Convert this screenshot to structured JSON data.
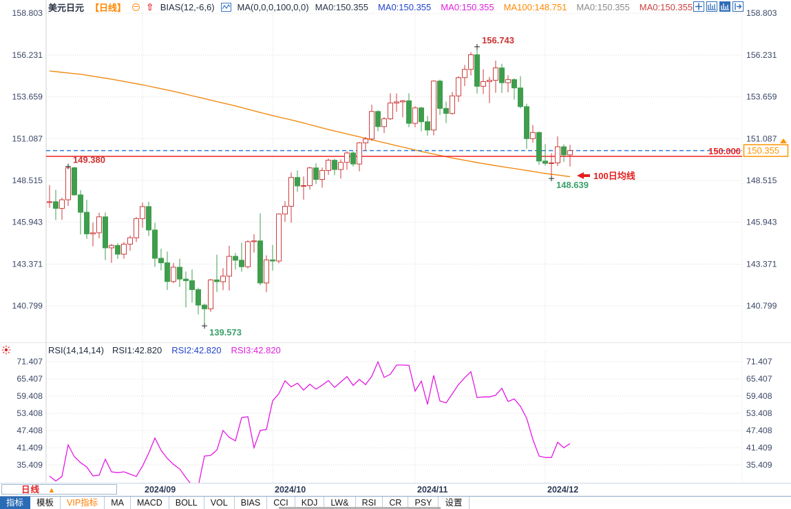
{
  "header": {
    "symbol": "美元日元",
    "period_tag": "【日线】",
    "bias_label": "BIAS(12,-6,6)",
    "ma_group_label": "MA(0,0,0,100,0,0)",
    "ma_values": [
      {
        "label": "MA0:150.355",
        "color": "#2b3347"
      },
      {
        "label": "MA0:150.355",
        "color": "#2244cc"
      },
      {
        "label": "MA0:150.355",
        "color": "#e020e0"
      },
      {
        "label": "MA100:148.751",
        "color": "#ff8800"
      },
      {
        "label": "MA0:150.355",
        "color": "#8a8a8a"
      },
      {
        "label": "MA0:150.355",
        "color": "#cc4040"
      }
    ]
  },
  "toolbar_icons": [
    {
      "name": "crosshair-icon"
    },
    {
      "name": "main-pane-icon"
    },
    {
      "name": "sub-pane-icon-active"
    },
    {
      "name": "shift-pane-icon"
    }
  ],
  "price_axis": {
    "ticks": [
      "158.803",
      "156.231",
      "153.659",
      "151.087",
      "148.515",
      "145.943",
      "143.371",
      "140.799"
    ]
  },
  "rsi_pane": {
    "label": "RSI(14,14,14)",
    "values": [
      {
        "label": "RSI1:42.820",
        "color": "#1f2a3c"
      },
      {
        "label": "RSI2:42.820",
        "color": "#2244cc"
      },
      {
        "label": "RSI3:42.820",
        "color": "#e020e0"
      }
    ],
    "ticks": [
      "71.407",
      "65.407",
      "59.408",
      "53.408",
      "47.408",
      "41.409",
      "35.409"
    ]
  },
  "footer": {
    "period_label": "日线",
    "period_arrow": "▲",
    "tabs": [
      {
        "label": "指标",
        "active": true
      },
      {
        "label": "模板"
      },
      {
        "label": "VIP指标",
        "vip": true
      },
      {
        "label": "MA"
      },
      {
        "label": "MACD"
      },
      {
        "label": "BOLL"
      },
      {
        "label": "VOL"
      },
      {
        "label": "BIAS"
      },
      {
        "label": "CCI"
      },
      {
        "label": "KDJ"
      },
      {
        "label": "LW&"
      },
      {
        "label": "RSI"
      },
      {
        "label": "CR"
      },
      {
        "label": "PSY"
      },
      {
        "label": "设置"
      }
    ]
  },
  "colors": {
    "up_candle": "#cc3b3b",
    "down_candle": "#3f9e4d",
    "ma100_line": "#f08b12",
    "price_level_line": "#ee2222",
    "current_price_line": "#2e7bd9",
    "rsi_line": "#e318e3",
    "badge": "#ff9500",
    "grid": "#d9d9d9",
    "axis_text": "#3a4766"
  },
  "chart_data": {
    "type": "candlestick",
    "title": "美元日元 日线 (USD/JPY daily with MA100 and RSI)",
    "months": [
      {
        "label": "2024/09",
        "candle_index": 15
      },
      {
        "label": "2024/10",
        "candle_index": 36
      },
      {
        "label": "2024/11",
        "candle_index": 59
      },
      {
        "label": "2024/12",
        "candle_index": 80
      }
    ],
    "price_axis_range": [
      139.0,
      158.803
    ],
    "rsi_axis_range": [
      35.409,
      71.407
    ],
    "lines": {
      "price_level": 150.0,
      "price_level_label": "150.000",
      "current_price": 150.355,
      "current_price_label": "150.355"
    },
    "candles": [
      [
        147.16,
        148.23,
        146.84,
        147.21
      ],
      [
        147.21,
        147.94,
        146.08,
        146.8
      ],
      [
        146.8,
        147.45,
        146.1,
        147.33
      ],
      [
        147.33,
        149.38,
        146.95,
        149.3
      ],
      [
        149.3,
        149.35,
        147.58,
        147.63
      ],
      [
        147.63,
        147.92,
        145.19,
        146.56
      ],
      [
        146.56,
        147.33,
        144.92,
        145.23
      ],
      [
        145.23,
        145.92,
        144.46,
        145.3
      ],
      [
        145.3,
        146.53,
        144.96,
        146.28
      ],
      [
        146.28,
        146.55,
        143.62,
        144.37
      ],
      [
        144.37,
        144.62,
        143.45,
        144.52
      ],
      [
        144.52,
        144.65,
        143.69,
        143.98
      ],
      [
        143.98,
        144.73,
        143.71,
        144.6
      ],
      [
        144.6,
        145.13,
        144.2,
        144.99
      ],
      [
        144.99,
        146.26,
        144.73,
        146.17
      ],
      [
        146.17,
        147.16,
        145.61,
        146.91
      ],
      [
        146.91,
        147.21,
        145.1,
        145.47
      ],
      [
        145.47,
        145.91,
        143.2,
        143.73
      ],
      [
        143.73,
        144.32,
        142.98,
        143.45
      ],
      [
        143.45,
        144.14,
        141.78,
        142.3
      ],
      [
        142.3,
        143.43,
        142.2,
        143.18
      ],
      [
        143.18,
        143.71,
        141.96,
        142.45
      ],
      [
        142.45,
        142.92,
        140.71,
        142.35
      ],
      [
        142.35,
        143.04,
        141.0,
        141.8
      ],
      [
        141.8,
        141.92,
        140.28,
        140.85
      ],
      [
        140.85,
        140.95,
        139.573,
        140.62
      ],
      [
        140.62,
        142.46,
        140.44,
        142.4
      ],
      [
        142.4,
        143.95,
        141.65,
        142.29
      ],
      [
        142.29,
        143.12,
        141.77,
        142.63
      ],
      [
        142.63,
        144.5,
        141.74,
        143.85
      ],
      [
        143.85,
        144.06,
        143.03,
        143.61
      ],
      [
        143.61,
        144.68,
        142.9,
        143.21
      ],
      [
        143.21,
        144.84,
        143.1,
        144.75
      ],
      [
        144.75,
        145.21,
        144.08,
        144.8
      ],
      [
        144.8,
        146.49,
        142.07,
        142.21
      ],
      [
        142.21,
        143.91,
        141.64,
        143.63
      ],
      [
        143.63,
        144.54,
        142.97,
        143.56
      ],
      [
        143.56,
        146.49,
        143.42,
        146.45
      ],
      [
        146.45,
        147.24,
        145.98,
        146.93
      ],
      [
        146.93,
        149.01,
        145.92,
        148.7
      ],
      [
        148.7,
        149.13,
        147.82,
        148.18
      ],
      [
        148.18,
        148.76,
        147.34,
        148.2
      ],
      [
        148.2,
        149.36,
        147.96,
        149.29
      ],
      [
        149.29,
        149.57,
        148.29,
        148.58
      ],
      [
        148.58,
        149.31,
        148.07,
        149.13
      ],
      [
        149.13,
        149.86,
        148.86,
        149.76
      ],
      [
        149.76,
        149.84,
        148.84,
        149.19
      ],
      [
        149.19,
        149.82,
        148.63,
        149.63
      ],
      [
        149.63,
        150.32,
        149.18,
        150.21
      ],
      [
        150.21,
        150.29,
        149.37,
        149.53
      ],
      [
        149.53,
        150.88,
        149.08,
        150.83
      ],
      [
        150.83,
        151.19,
        150.34,
        151.07
      ],
      [
        151.07,
        153.18,
        150.96,
        152.76
      ],
      [
        152.76,
        152.83,
        151.54,
        151.83
      ],
      [
        151.83,
        152.41,
        151.43,
        152.31
      ],
      [
        152.31,
        153.88,
        152.24,
        153.28
      ],
      [
        153.28,
        153.87,
        152.74,
        153.35
      ],
      [
        153.35,
        153.47,
        152.4,
        153.42
      ],
      [
        153.42,
        153.88,
        151.79,
        152.03
      ],
      [
        152.03,
        153.09,
        151.79,
        152.98
      ],
      [
        152.98,
        153.05,
        151.54,
        152.13
      ],
      [
        152.13,
        152.49,
        151.27,
        151.62
      ],
      [
        151.62,
        154.68,
        151.29,
        154.63
      ],
      [
        154.63,
        154.72,
        152.55,
        152.95
      ],
      [
        152.95,
        153.37,
        152.05,
        152.64
      ],
      [
        152.64,
        153.96,
        152.56,
        153.72
      ],
      [
        153.72,
        154.93,
        153.35,
        154.84
      ],
      [
        154.84,
        155.62,
        154.32,
        155.35
      ],
      [
        155.35,
        156.42,
        154.98,
        156.25
      ],
      [
        156.25,
        156.743,
        153.86,
        154.31
      ],
      [
        154.31,
        155.36,
        153.84,
        154.6
      ],
      [
        154.6,
        154.89,
        153.28,
        154.68
      ],
      [
        154.68,
        155.89,
        153.91,
        155.44
      ],
      [
        155.44,
        155.7,
        153.9,
        154.53
      ],
      [
        154.53,
        154.99,
        153.94,
        154.72
      ],
      [
        154.72,
        154.8,
        153.49,
        154.21
      ],
      [
        154.21,
        154.93,
        152.96,
        153.06
      ],
      [
        153.06,
        153.24,
        150.46,
        151.09
      ],
      [
        151.09,
        151.93,
        150.84,
        151.47
      ],
      [
        151.47,
        151.53,
        149.47,
        149.71
      ],
      [
        149.71,
        150.76,
        149.43,
        149.57
      ],
      [
        149.57,
        150.19,
        148.639,
        149.6
      ],
      [
        149.6,
        151.23,
        149.41,
        150.59
      ],
      [
        150.59,
        150.74,
        149.66,
        150.09
      ],
      [
        150.09,
        150.71,
        149.37,
        150.355
      ]
    ],
    "ma100": [
      155.25,
      155.21,
      155.17,
      155.13,
      155.09,
      155.05,
      154.99,
      154.93,
      154.87,
      154.81,
      154.75,
      154.68,
      154.61,
      154.54,
      154.47,
      154.4,
      154.32,
      154.24,
      154.16,
      154.08,
      154.0,
      153.91,
      153.82,
      153.73,
      153.64,
      153.55,
      153.46,
      153.37,
      153.28,
      153.19,
      153.1,
      153.0,
      152.9,
      152.8,
      152.7,
      152.6,
      152.51,
      152.42,
      152.33,
      152.24,
      152.15,
      152.05,
      151.95,
      151.85,
      151.75,
      151.65,
      151.56,
      151.47,
      151.38,
      151.29,
      151.2,
      151.11,
      151.02,
      150.93,
      150.84,
      150.75,
      150.66,
      150.57,
      150.48,
      150.39,
      150.3,
      150.22,
      150.14,
      150.06,
      149.98,
      149.9,
      149.83,
      149.76,
      149.69,
      149.62,
      149.55,
      149.49,
      149.43,
      149.37,
      149.31,
      149.25,
      149.19,
      149.13,
      149.07,
      149.01,
      148.95,
      148.9,
      148.85,
      148.8,
      148.751
    ],
    "rsi": [
      31.5,
      29.8,
      31.4,
      42.4,
      38.3,
      36.2,
      34.7,
      31.6,
      31.8,
      37.4,
      33.0,
      32.7,
      33.0,
      32.2,
      31.4,
      35.0,
      39.5,
      44.8,
      40.5,
      37.7,
      35.6,
      34.0,
      31.0,
      28.2,
      28.0,
      38.5,
      38.7,
      40.6,
      47.4,
      45.0,
      43.8,
      51.9,
      52.2,
      41.4,
      47.4,
      47.8,
      57.7,
      60.2,
      64.7,
      62.6,
      63.9,
      61.5,
      63.5,
      61.8,
      63.2,
      64.8,
      62.4,
      64.3,
      66.2,
      63.1,
      65.2,
      63.4,
      66.3,
      71.3,
      65.9,
      67.0,
      70.2,
      70.2,
      70.1,
      61.1,
      64.6,
      56.5,
      66.6,
      57.7,
      57.0,
      60.2,
      63.4,
      65.8,
      67.9,
      58.9,
      59.1,
      59.1,
      59.7,
      62.1,
      57.5,
      58.4,
      55.8,
      51.7,
      44.3,
      38.5,
      38.0,
      38.0,
      43.3,
      41.4,
      42.82
    ],
    "annotations": [
      {
        "text": "149.380",
        "candle_index": 3,
        "at": "high",
        "color": "#cc3333"
      },
      {
        "text": "139.573",
        "candle_index": 25,
        "at": "low",
        "color": "#3aa06a"
      },
      {
        "text": "156.743",
        "candle_index": 69,
        "at": "high",
        "color": "#cc3333"
      },
      {
        "text": "148.639",
        "candle_index": 81,
        "at": "low",
        "color": "#3aa06a"
      },
      {
        "text": "100日均线",
        "type": "arrow-label",
        "color": "#e32020"
      }
    ]
  }
}
